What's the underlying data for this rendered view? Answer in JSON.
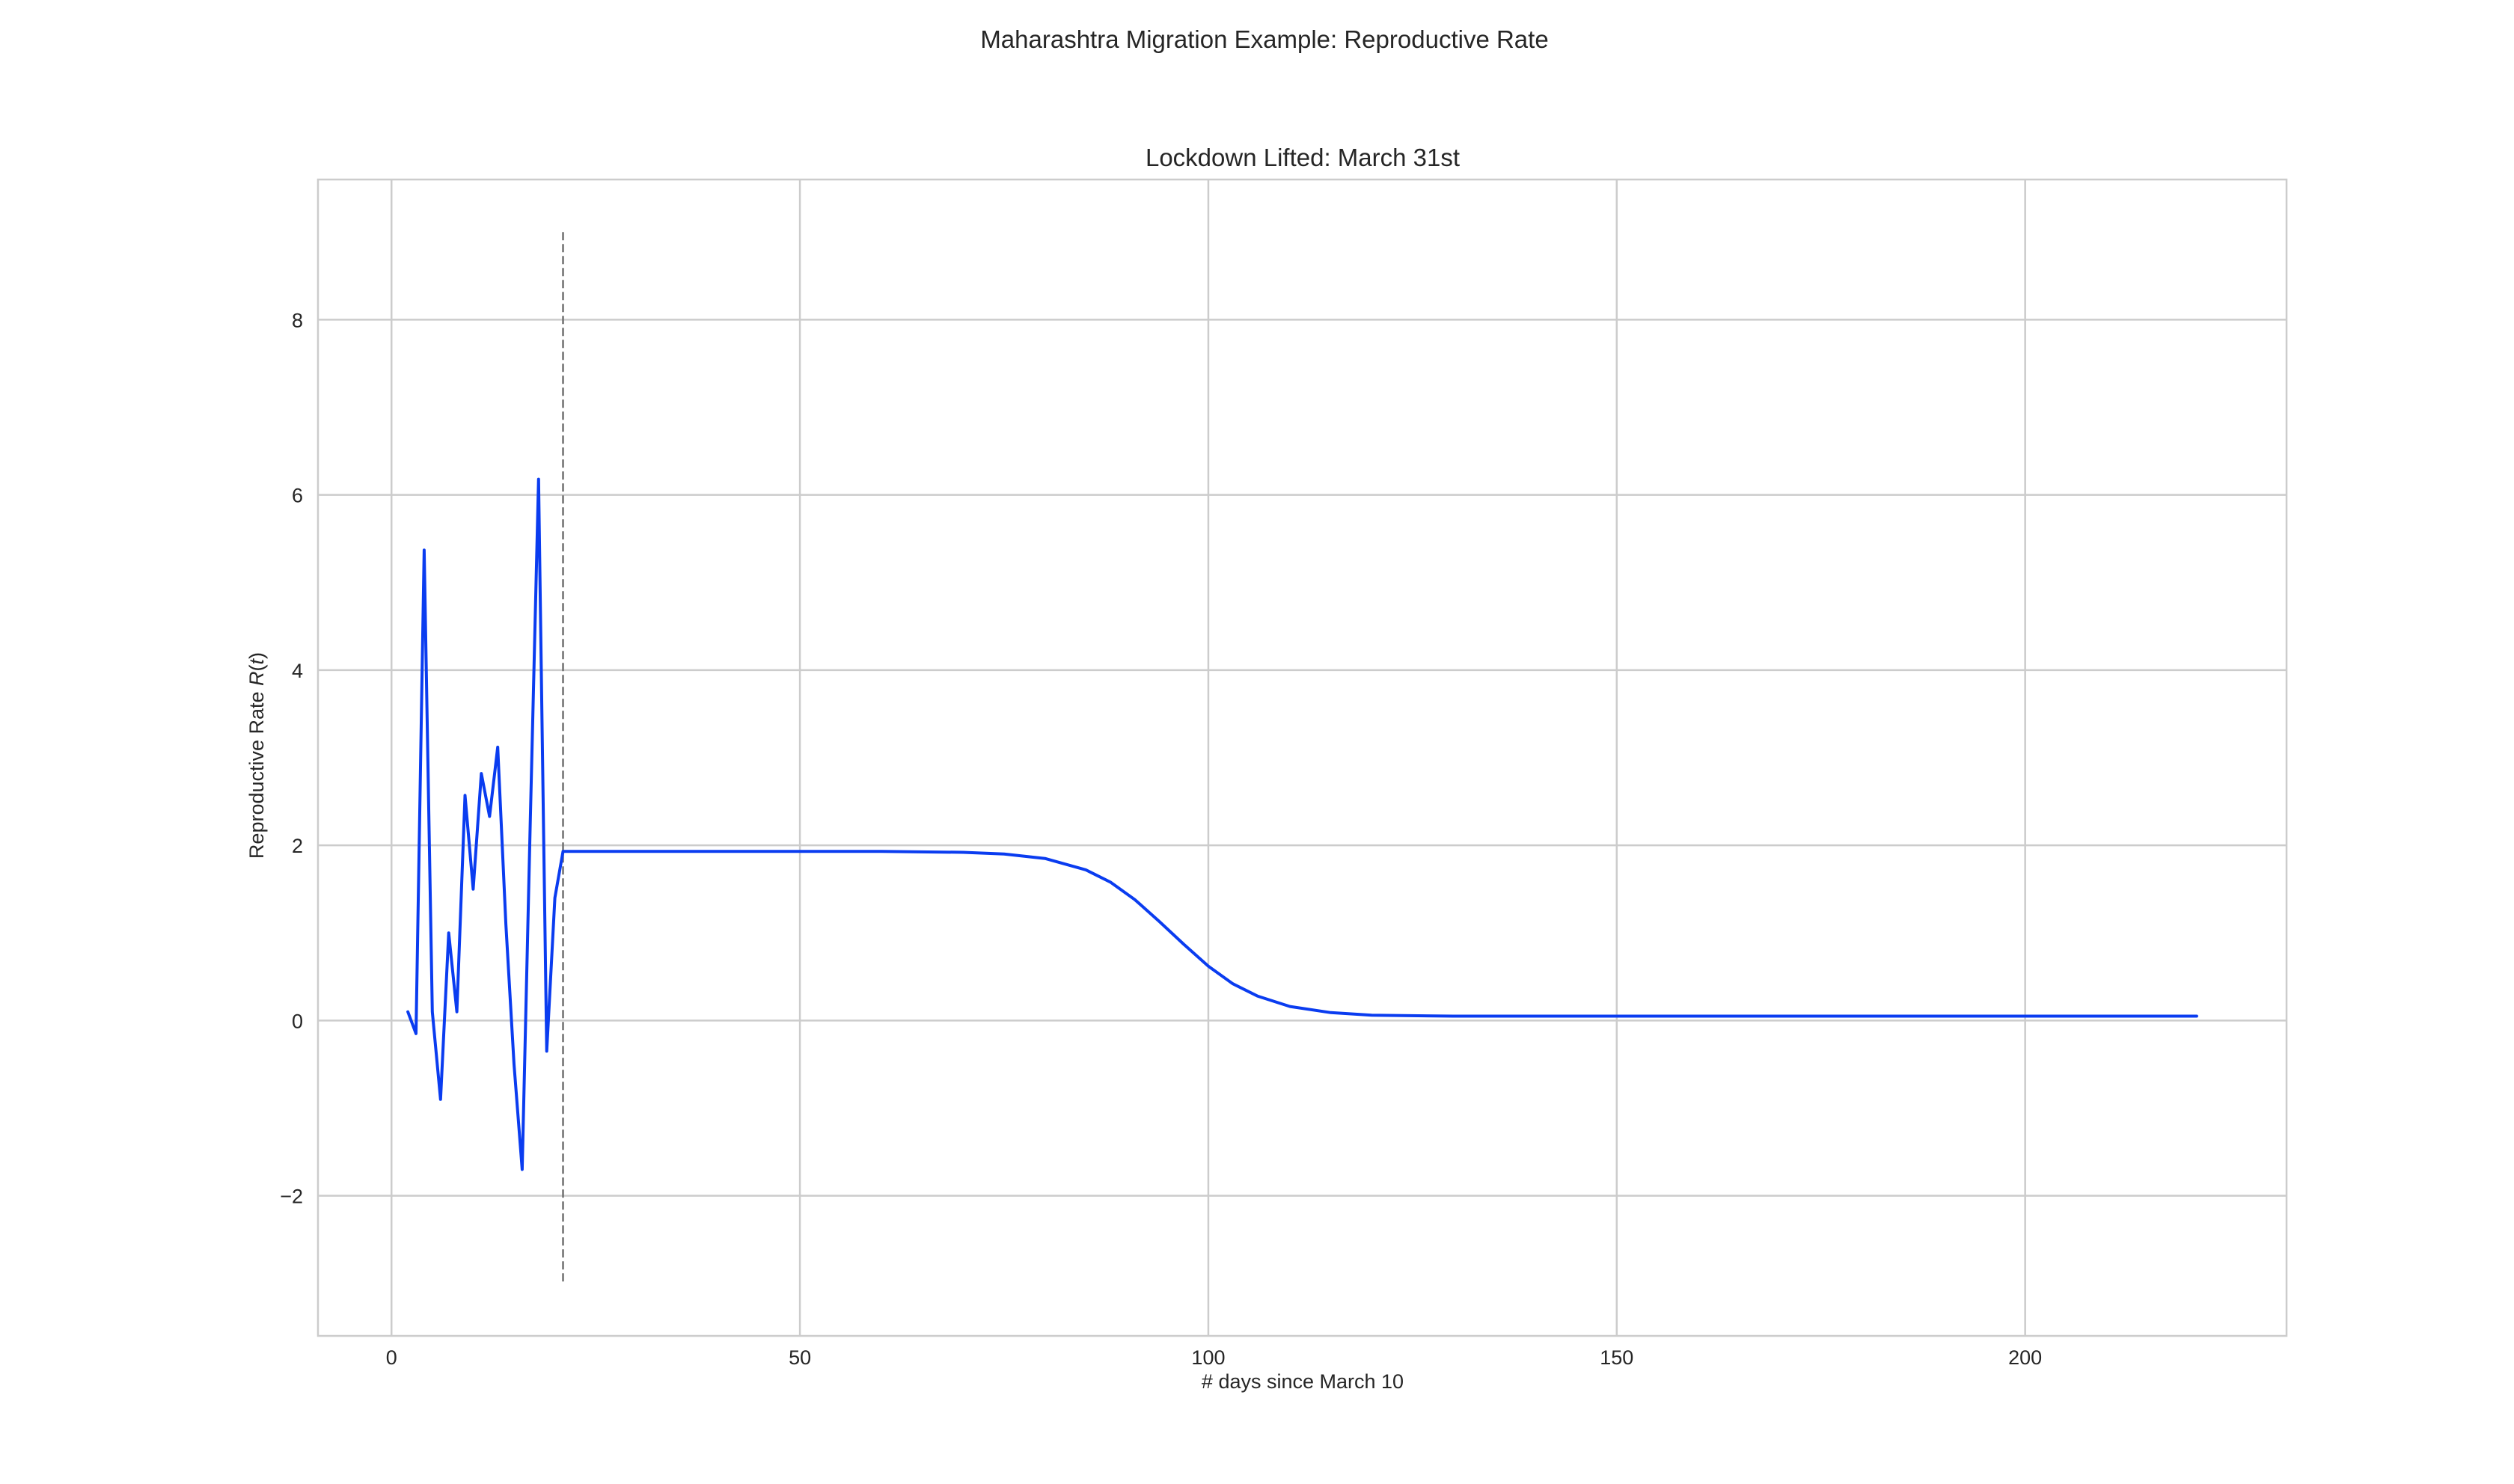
{
  "chart_data": {
    "type": "line",
    "suptitle": "Maharashtra Migration Example: Reproductive Rate",
    "title": "Lockdown Lifted: March 31st",
    "xlabel": "# days since March 10",
    "ylabel": "Reproductive Rate R(t)",
    "xlim": [
      -9,
      232
    ],
    "ylim": [
      -3.6,
      9.6
    ],
    "xticks": [
      0,
      50,
      100,
      150,
      200
    ],
    "yticks": [
      -2,
      0,
      2,
      4,
      6,
      8
    ],
    "grid": true,
    "colors": {
      "series": "#0a3cf0",
      "vline": "#707070",
      "grid": "#cccccc",
      "text": "#262626"
    },
    "vline": {
      "x": 21,
      "ymin": -3,
      "ymax": 9
    },
    "series": [
      {
        "x": [
          2,
          3,
          4,
          5,
          6,
          7,
          8,
          9,
          10,
          11,
          12,
          13,
          14,
          15,
          16,
          17,
          18,
          19,
          20,
          21,
          22,
          30,
          40,
          50,
          60,
          70,
          75,
          80,
          85,
          88,
          91,
          94,
          97,
          100,
          103,
          106,
          110,
          115,
          120,
          130,
          150,
          200,
          221
        ],
        "values": [
          0.1,
          -0.15,
          5.37,
          0.1,
          -0.9,
          1.0,
          0.1,
          2.57,
          1.5,
          2.82,
          2.33,
          3.12,
          1.1,
          -0.5,
          -1.7,
          2.3,
          6.18,
          -0.35,
          1.4,
          1.93,
          1.93,
          1.93,
          1.93,
          1.93,
          1.93,
          1.92,
          1.9,
          1.85,
          1.72,
          1.58,
          1.38,
          1.13,
          0.87,
          0.62,
          0.42,
          0.28,
          0.16,
          0.09,
          0.06,
          0.05,
          0.05,
          0.05,
          0.05
        ]
      }
    ]
  }
}
